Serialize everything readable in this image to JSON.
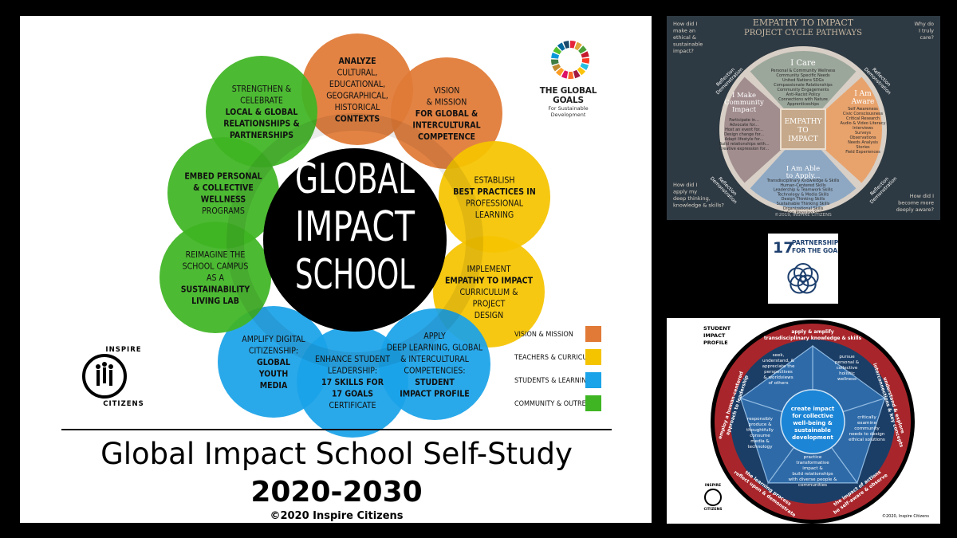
{
  "main": {
    "center": [
      "GLOBAL",
      "IMPACT",
      "SCHOOL"
    ],
    "petals": [
      {
        "id": "analyze",
        "color": "#e07a36",
        "lines": [
          {
            "t": "ANALYZE",
            "b": true
          },
          {
            "t": "CULTURAL,",
            "b": false
          },
          {
            "t": "EDUCATIONAL,",
            "b": false
          },
          {
            "t": "GEOGRAPHICAL,",
            "b": false
          },
          {
            "t": "HISTORICAL",
            "b": false
          },
          {
            "t": "CONTEXTS",
            "b": true
          }
        ]
      },
      {
        "id": "vision",
        "color": "#e07a36",
        "lines": [
          {
            "t": "VISION",
            "b": false
          },
          {
            "t": "& MISSION",
            "b": false
          },
          {
            "t": "FOR GLOBAL &",
            "b": true
          },
          {
            "t": "INTERCULTURAL",
            "b": true
          },
          {
            "t": "COMPETENCE",
            "b": true
          }
        ]
      },
      {
        "id": "establish",
        "color": "#f5c400",
        "lines": [
          {
            "t": "ESTABLISH",
            "b": false
          },
          {
            "t": "BEST PRACTICES IN",
            "b": true
          },
          {
            "t": "PROFESSIONAL",
            "b": false
          },
          {
            "t": "LEARNING",
            "b": false
          }
        ]
      },
      {
        "id": "implement",
        "color": "#f5c400",
        "lines": [
          {
            "t": "IMPLEMENT",
            "b": false
          },
          {
            "t": "EMPATHY TO IMPACT",
            "b": true
          },
          {
            "t": "CURRICULUM &",
            "b": false
          },
          {
            "t": "PROJECT",
            "b": false
          },
          {
            "t": "DESIGN",
            "b": false
          }
        ]
      },
      {
        "id": "apply",
        "color": "#1aa3e8",
        "lines": [
          {
            "t": "APPLY",
            "b": false
          },
          {
            "t": "DEEP LEARNING, GLOBAL",
            "b": false
          },
          {
            "t": "& INTERCULTURAL",
            "b": false
          },
          {
            "t": "COMPETENCIES:",
            "b": false
          },
          {
            "t": "STUDENT",
            "b": true
          },
          {
            "t": "IMPACT PROFILE",
            "b": true
          }
        ]
      },
      {
        "id": "enhance",
        "color": "#1aa3e8",
        "lines": [
          {
            "t": "ENHANCE STUDENT",
            "b": false
          },
          {
            "t": "LEADERSHIP:",
            "b": false
          },
          {
            "t": "17 SKILLS FOR",
            "b": true
          },
          {
            "t": "17 GOALS",
            "b": true
          },
          {
            "t": "CERTIFICATE",
            "b": false
          }
        ]
      },
      {
        "id": "amplify",
        "color": "#1aa3e8",
        "lines": [
          {
            "t": "AMPLIFY DIGITAL",
            "b": false
          },
          {
            "t": "CITIZENSHIP:",
            "b": false
          },
          {
            "t": "GLOBAL",
            "b": true
          },
          {
            "t": "YOUTH",
            "b": true
          },
          {
            "t": "MEDIA",
            "b": true
          }
        ]
      },
      {
        "id": "reimagine",
        "color": "#3fb523",
        "lines": [
          {
            "t": "REIMAGINE THE",
            "b": false
          },
          {
            "t": "SCHOOL CAMPUS",
            "b": false
          },
          {
            "t": "AS A",
            "b": false
          },
          {
            "t": "SUSTAINABILITY",
            "b": true
          },
          {
            "t": "LIVING LAB",
            "b": true
          }
        ]
      },
      {
        "id": "embed",
        "color": "#3fb523",
        "lines": [
          {
            "t": "EMBED PERSONAL",
            "b": true
          },
          {
            "t": "& COLLECTIVE",
            "b": true
          },
          {
            "t": "WELLNESS",
            "b": true
          },
          {
            "t": "PROGRAMS",
            "b": false
          }
        ]
      },
      {
        "id": "strengthen",
        "color": "#3fb523",
        "lines": [
          {
            "t": "STRENGTHEN &",
            "b": false
          },
          {
            "t": "CELEBRATE",
            "b": false
          },
          {
            "t": "LOCAL & GLOBAL",
            "b": true
          },
          {
            "t": "RELATIONSHIPS &",
            "b": true
          },
          {
            "t": "PARTNERSHIPS",
            "b": true
          }
        ]
      }
    ],
    "legend": [
      {
        "label": "VISION & MISSION",
        "color": "#e07a36"
      },
      {
        "label": "TEACHERS & CURRICULUM",
        "color": "#f5c400"
      },
      {
        "label": "STUDENTS & LEARNING",
        "color": "#1aa3e8"
      },
      {
        "label": "COMMUNITY & OUTREACH",
        "color": "#3fb523"
      }
    ],
    "global_goals_title": "THE GLOBAL GOALS",
    "global_goals_sub": "For Sustainable Development",
    "brand_top": "INSPIRE",
    "brand_bottom": "CITIZENS",
    "watermark": "INSPIRE CITIZENS",
    "title": "Global Impact School Self-Study",
    "years": "2020-2030",
    "copyright": "©2020 Inspire Citizens"
  },
  "cycle": {
    "title1": "EMPATHY TO IMPACT",
    "title2": "PROJECT CYCLE PATHWAYS",
    "q_tl": [
      "How did I",
      "make an",
      "ethical &",
      "sustainable",
      "impact?"
    ],
    "q_tr": [
      "Why do",
      "I truly",
      "care?"
    ],
    "q_bl": [
      "How did I",
      "apply my",
      "deep thinking,",
      "knowledge & skills?"
    ],
    "q_br": [
      "How did I",
      "become more",
      "deeply aware?"
    ],
    "reflection": "Reflection",
    "demonstration": "Demonstration",
    "care_title": "I Care",
    "care_items": [
      "Personal & Community Wellness",
      "Community Specific Needs",
      "United Nations SDGs",
      "Compassionate Relationships",
      "Community Engagements",
      "Anti-Racist Policy",
      "Connections with Nature",
      "Apprenticeships"
    ],
    "aware_title": [
      "I Am",
      "Aware"
    ],
    "aware_items": [
      "Self Awareness",
      "Civic Consciousness",
      "Critical Research",
      "Audio & Video Literacy",
      "Interviews",
      "Surveys",
      "Observations",
      "Needs Analysis",
      "Stories",
      "Field Experiences"
    ],
    "apply_title": [
      "I Am Able",
      "to Apply..."
    ],
    "apply_items": [
      "Transdisciplinary Knowledge & Skills",
      "Human-Centered Skills",
      "Leadership & Teamwork Skills",
      "Technology & Media Skills",
      "Design Thinking Skills",
      "Sustainable Thinking Skills",
      "Organizational Skills",
      "Action Planning Skills"
    ],
    "make_title": [
      "I Make",
      "Community",
      "Impact"
    ],
    "make_items": [
      "Participate in...",
      "Advocate for...",
      "Host an event for...",
      "Design change for...",
      "Adapt lifestyle for...",
      "Build relationships with...",
      "Creative expression for..."
    ],
    "center": [
      "EMPATHY",
      "TO",
      "IMPACT"
    ],
    "copyright": "©2019, INSPIRE CITIZENS"
  },
  "sdg17": {
    "number": "17",
    "line1": "PARTNERSHIPS",
    "line2": "FOR THE GOALS"
  },
  "profile": {
    "heading": [
      "STUDENT",
      "IMPACT",
      "PROFILE"
    ],
    "ring_top": [
      "apply & amplify",
      "transdisciplinary knowledge & skills"
    ],
    "ring_right": [
      "understand & explore",
      "interconnections & key concepts"
    ],
    "ring_bottom_right": [
      "be self-aware & observe",
      "the impact of actions"
    ],
    "ring_bottom_left": [
      "reflect upon & demonstrate",
      "the learning process"
    ],
    "ring_left": [
      "employ a human-centered",
      "approach to leadership"
    ],
    "seg_tl": [
      "seek,",
      "understand, &",
      "appreciate the",
      "perspectives",
      "& worldviews",
      "of others"
    ],
    "seg_tr": [
      "pursue",
      "personal &",
      "collective",
      "holistic",
      "wellness"
    ],
    "seg_r": [
      "critically",
      "examine",
      "community",
      "needs to design",
      "ethical solutions"
    ],
    "seg_b": [
      "practice",
      "transformative",
      "impact &",
      "build relationships",
      "with diverse people &",
      "communities"
    ],
    "seg_l": [
      "responsibly",
      "produce &",
      "thoughtfully",
      "consume",
      "media &",
      "technology"
    ],
    "center": [
      "create impact",
      "for collective",
      "well-being &",
      "sustainable",
      "development"
    ],
    "brand_top": "INSPIRE",
    "brand_bottom": "CITIZENS",
    "copyright": "©2020, Inspire Citizens"
  }
}
